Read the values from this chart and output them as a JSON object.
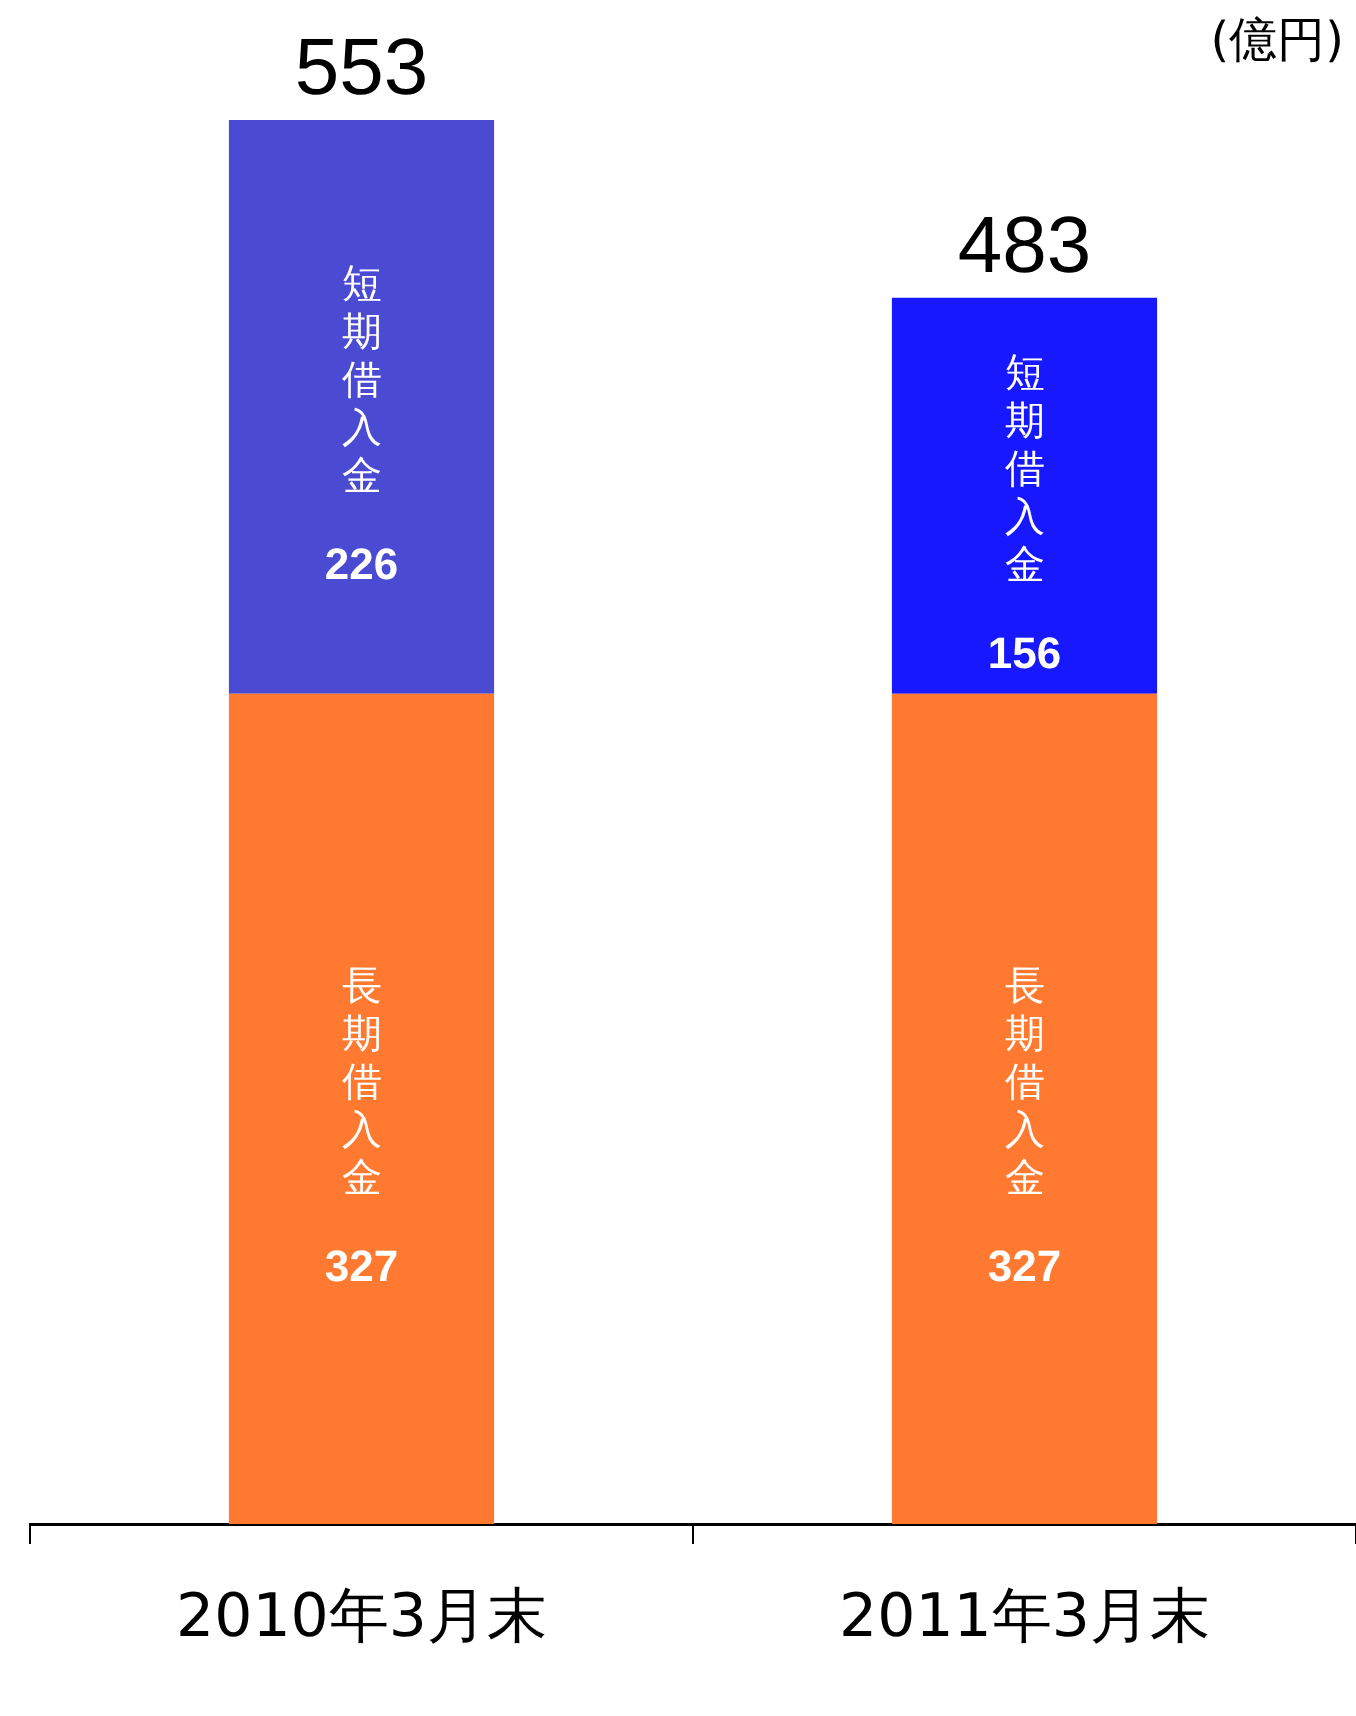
{
  "chart_data": {
    "type": "bar",
    "stacked": true,
    "categories": [
      "2010年3月末",
      "2011年3月末"
    ],
    "data_labels": true,
    "totals": [
      "553",
      "483"
    ],
    "annotations": [
      "(億円)"
    ],
    "legend": false,
    "grid": false,
    "series": [
      {
        "name": "長期借入金",
        "color": "#ff7a30",
        "values": [
          327,
          327
        ]
      },
      {
        "name": "短期借入金",
        "colors": [
          "#4a4ad2",
          "#1818ff"
        ],
        "values": [
          226,
          156
        ]
      }
    ]
  }
}
